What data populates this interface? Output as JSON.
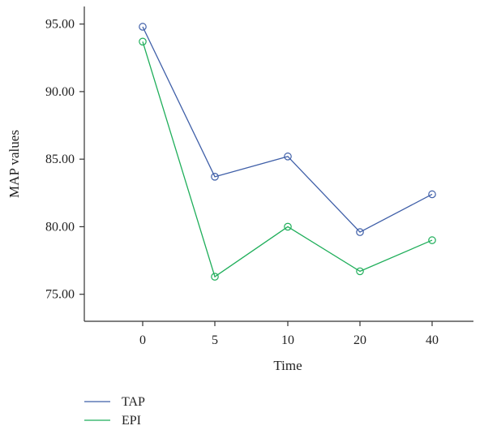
{
  "chart_data": {
    "type": "line",
    "title": "",
    "xlabel": "Time",
    "ylabel": "MAP values",
    "categories": [
      "0",
      "5",
      "10",
      "20",
      "40"
    ],
    "yticks": [
      "75.00",
      "80.00",
      "85.00",
      "90.00",
      "95.00"
    ],
    "ylim": [
      73.0,
      96.3
    ],
    "grid": false,
    "legend_position": "bottom-left",
    "series": [
      {
        "name": "TAP",
        "color": "#3f5fa8",
        "values": [
          94.8,
          83.7,
          85.2,
          79.6,
          82.4
        ]
      },
      {
        "name": "EPI",
        "color": "#1fae5a",
        "values": [
          93.7,
          76.3,
          80.0,
          76.7,
          79.0
        ]
      }
    ]
  }
}
